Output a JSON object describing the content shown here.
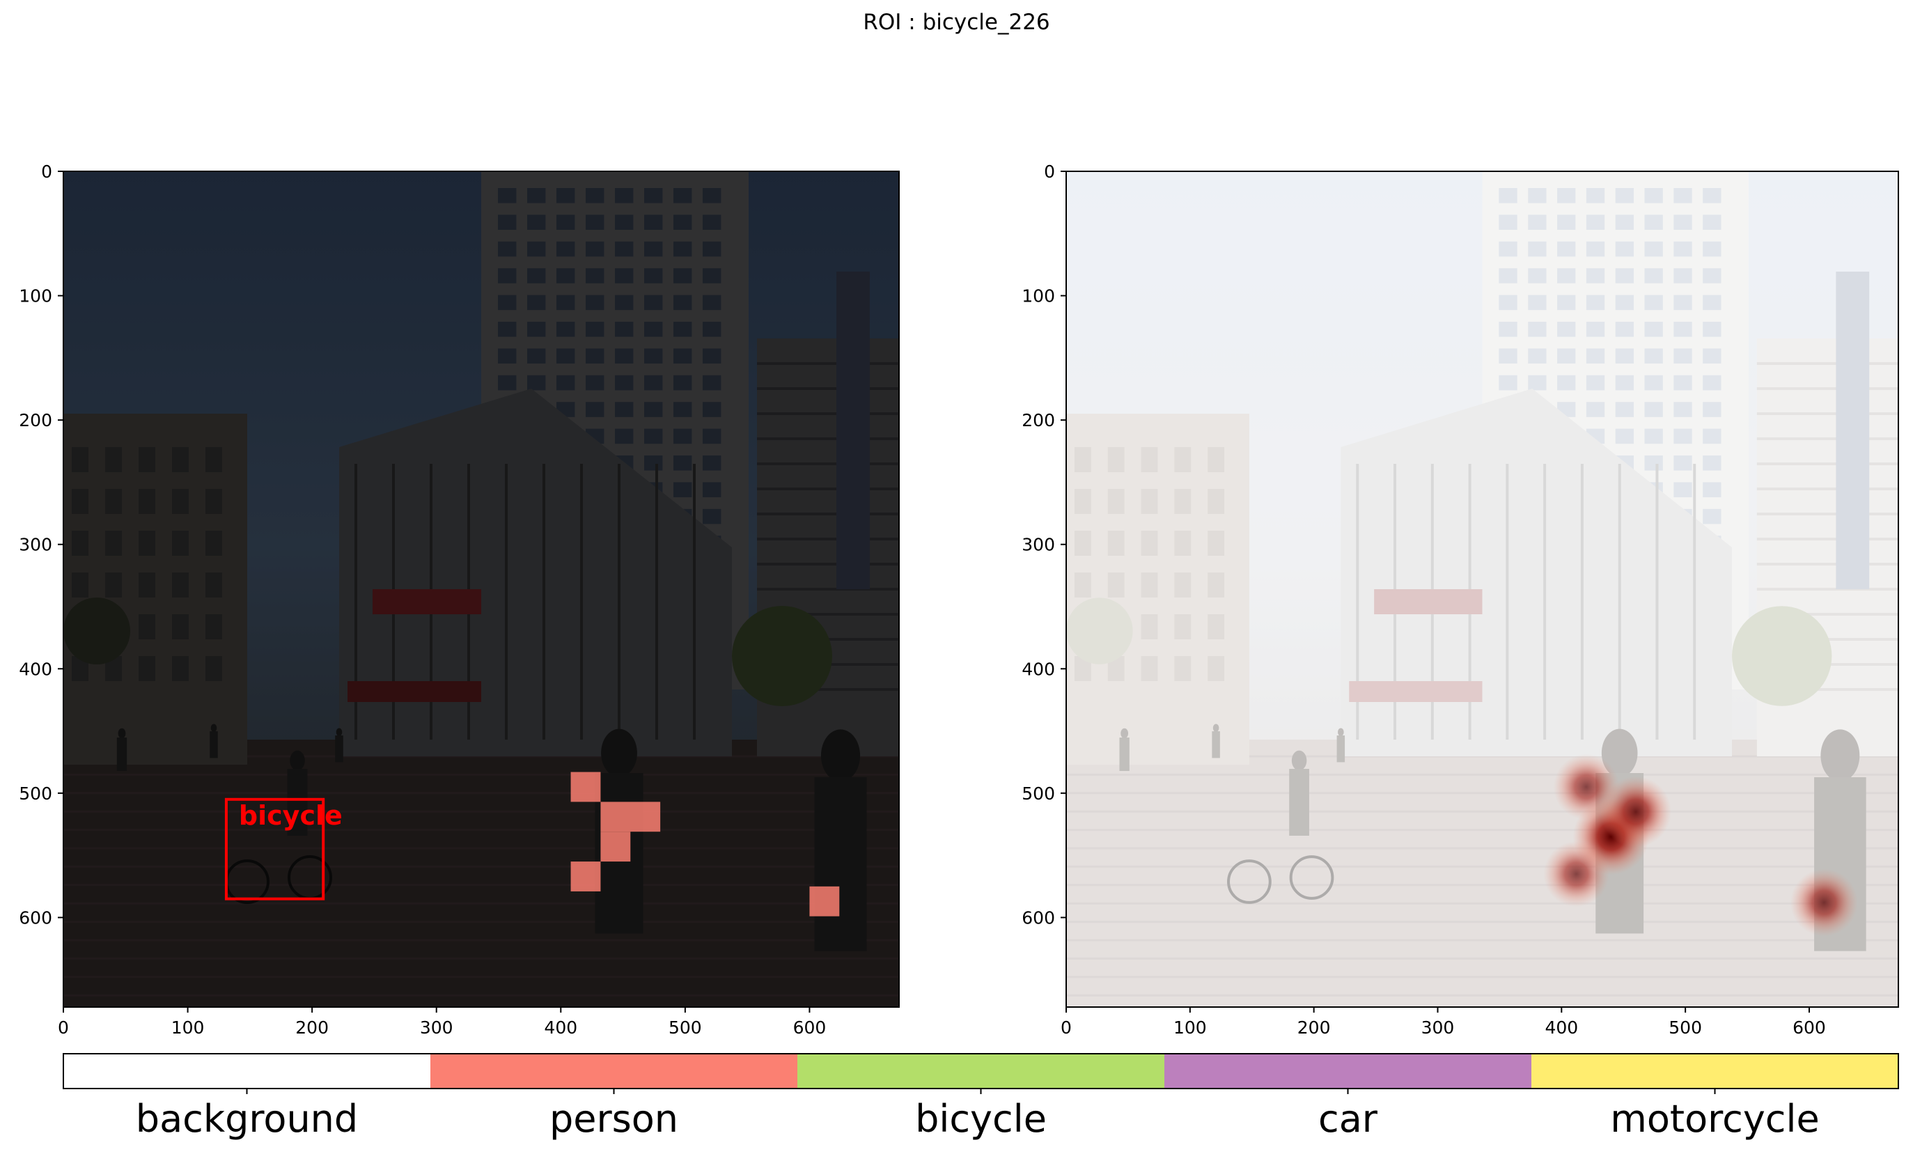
{
  "suptitle": "ROI : bicycle_226",
  "colors": {
    "background": "#ffffff",
    "person": "#fb8072",
    "bicycle": "#b3de69",
    "car": "#bc80bd",
    "motorcycle": "#ffed6f",
    "roi_box": "#ff0000",
    "heat": "#8b0000"
  },
  "images": {
    "left": {
      "description_icon": "street-scene-darkened"
    },
    "right": {
      "description_icon": "street-scene-washed-out"
    }
  },
  "chart_data": [
    {
      "type": "heatmap",
      "panel": "left",
      "xlim": [
        0,
        672
      ],
      "ylim": [
        672,
        0
      ],
      "x_ticks": [
        0,
        100,
        200,
        300,
        400,
        500,
        600
      ],
      "y_ticks": [
        0,
        100,
        200,
        300,
        400,
        500,
        600
      ],
      "roi_box": {
        "label": "bicycle",
        "x0": 131,
        "y0": 505,
        "x1": 209,
        "y1": 585
      },
      "person_cells": [
        {
          "x": 408,
          "y": 483,
          "w": 24,
          "h": 24
        },
        {
          "x": 432,
          "y": 507,
          "w": 48,
          "h": 24
        },
        {
          "x": 432,
          "y": 531,
          "w": 24,
          "h": 24
        },
        {
          "x": 408,
          "y": 555,
          "w": 24,
          "h": 24
        },
        {
          "x": 600,
          "y": 575,
          "w": 24,
          "h": 24
        }
      ]
    },
    {
      "type": "heatmap",
      "panel": "right",
      "xlim": [
        0,
        672
      ],
      "ylim": [
        672,
        0
      ],
      "x_ticks": [
        0,
        100,
        200,
        300,
        400,
        500,
        600
      ],
      "y_ticks": [
        0,
        100,
        200,
        300,
        400,
        500,
        600
      ],
      "hotspots": [
        {
          "x": 440,
          "y": 535,
          "intensity": 1.0
        },
        {
          "x": 460,
          "y": 515,
          "intensity": 0.85
        },
        {
          "x": 420,
          "y": 495,
          "intensity": 0.7
        },
        {
          "x": 412,
          "y": 565,
          "intensity": 0.7
        },
        {
          "x": 612,
          "y": 588,
          "intensity": 0.75
        }
      ]
    }
  ],
  "legend": {
    "categories": [
      "background",
      "person",
      "bicycle",
      "car",
      "motorcycle"
    ]
  }
}
